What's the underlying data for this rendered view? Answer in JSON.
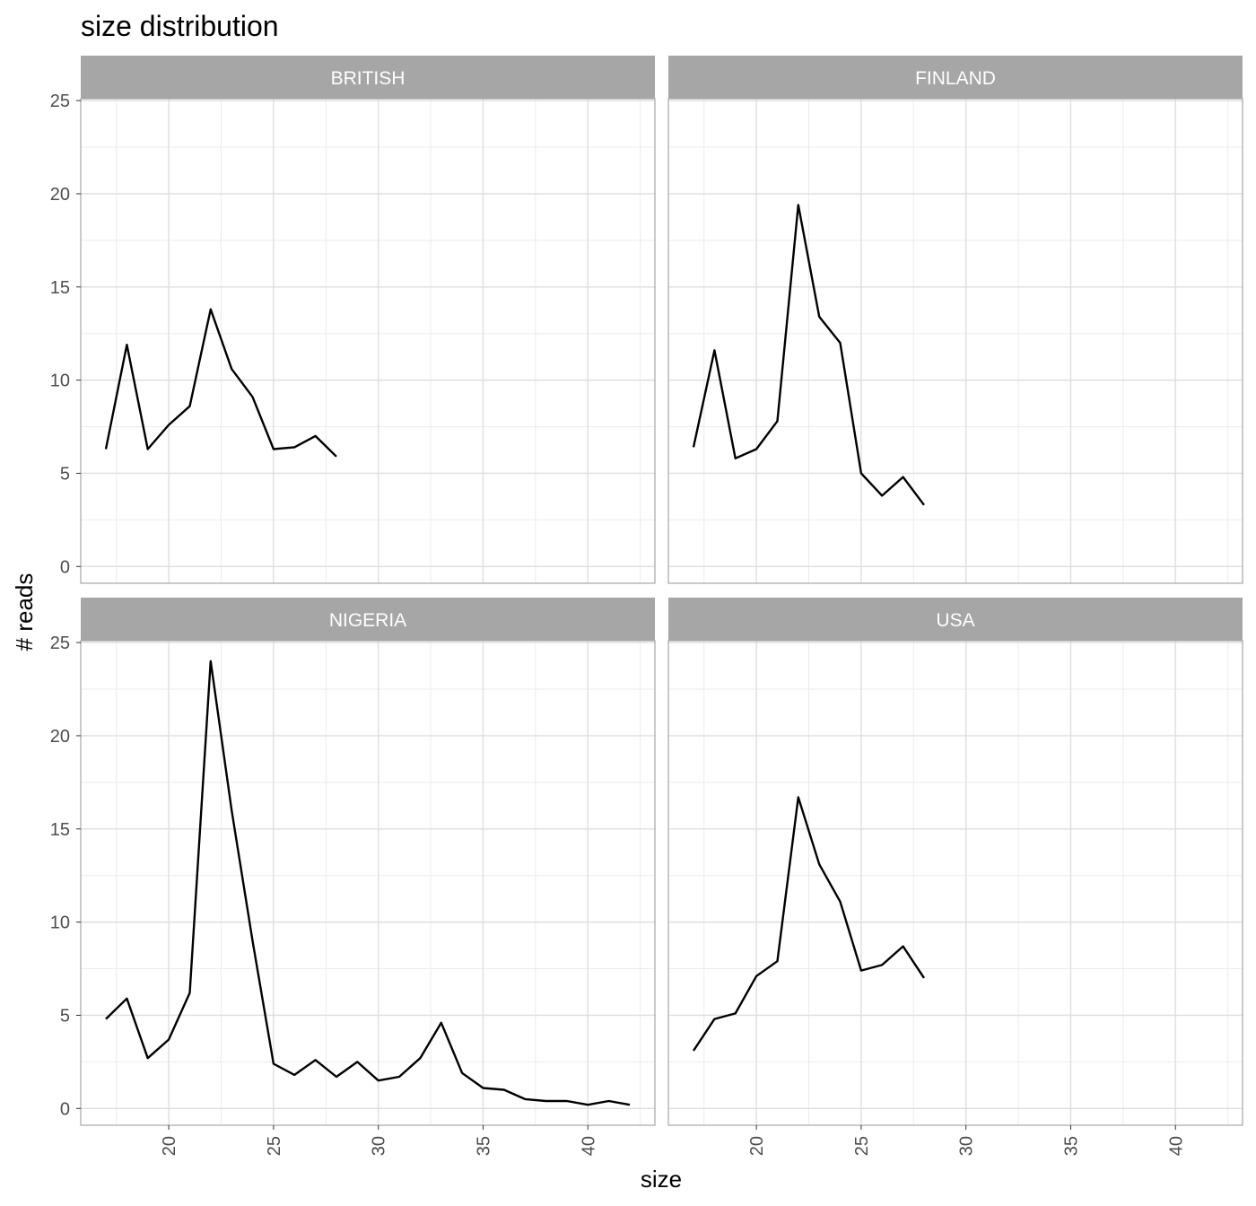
{
  "chart_data": {
    "type": "line",
    "title": "size distribution",
    "xlabel": "size",
    "ylabel": "# reads",
    "xlim": [
      15.8,
      43.2
    ],
    "ylim": [
      -0.9,
      25.1
    ],
    "x_ticks": [
      20,
      25,
      30,
      35,
      40
    ],
    "y_ticks": [
      0,
      5,
      10,
      15,
      20,
      25
    ],
    "grid": true,
    "legend": "none",
    "line_color": "#000000",
    "strip_color": "#a6a6a6",
    "panels": [
      {
        "name": "BRITISH",
        "x": [
          17,
          18,
          19,
          20,
          21,
          22,
          23,
          24,
          25,
          26,
          27,
          28
        ],
        "y": [
          6.3,
          11.9,
          6.3,
          7.6,
          8.6,
          13.8,
          10.6,
          9.1,
          6.3,
          6.4,
          7.0,
          5.9
        ]
      },
      {
        "name": "FINLAND",
        "x": [
          17,
          18,
          19,
          20,
          21,
          22,
          23,
          24,
          25,
          26,
          27,
          28
        ],
        "y": [
          6.4,
          11.6,
          5.8,
          6.3,
          7.8,
          19.4,
          13.4,
          12.0,
          5.0,
          3.8,
          4.8,
          3.3
        ]
      },
      {
        "name": "NIGERIA",
        "x": [
          17,
          18,
          19,
          20,
          21,
          22,
          23,
          24,
          25,
          26,
          27,
          28,
          29,
          30,
          31,
          32,
          33,
          34,
          35,
          36,
          37,
          38,
          39,
          40,
          41,
          42
        ],
        "y": [
          4.8,
          5.9,
          2.7,
          3.7,
          6.2,
          24.0,
          16.0,
          9.0,
          2.4,
          1.8,
          2.6,
          1.7,
          2.5,
          1.5,
          1.7,
          2.7,
          4.6,
          1.9,
          1.1,
          1.0,
          0.5,
          0.4,
          0.4,
          0.2,
          0.4,
          0.2
        ]
      },
      {
        "name": "USA",
        "x": [
          17,
          18,
          19,
          20,
          21,
          22,
          23,
          24,
          25,
          26,
          27,
          28
        ],
        "y": [
          3.1,
          4.8,
          5.1,
          7.1,
          7.9,
          16.7,
          13.1,
          11.1,
          7.4,
          7.7,
          8.7,
          7.0
        ]
      }
    ]
  }
}
